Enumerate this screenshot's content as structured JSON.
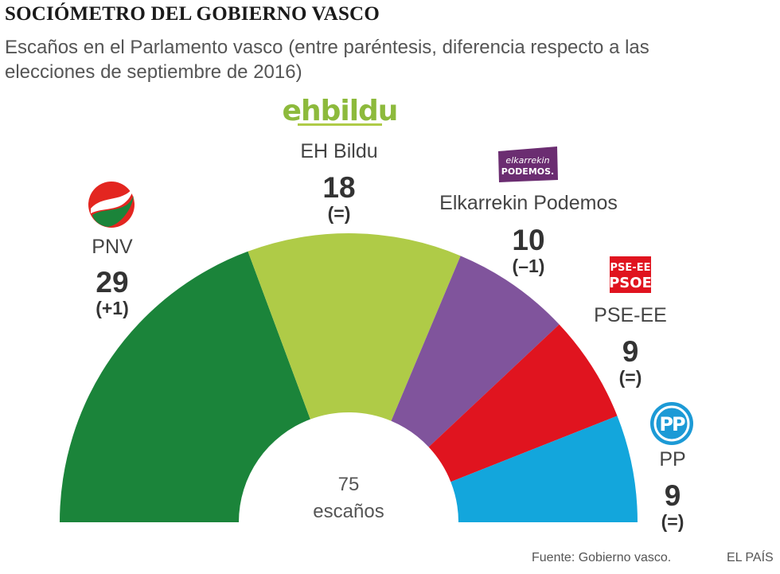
{
  "title": "SOCIÓMETRO DEL GOBIERNO VASCO",
  "subtitle": "Escaños en el Parlamento vasco (entre paréntesis, diferencia respecto a las elecciones de septiembre de 2016)",
  "chart_data": {
    "type": "pie",
    "variant": "half-donut (hemicycle)",
    "title": "SOCIÓMETRO DEL GOBIERNO VASCO",
    "total_seats": 75,
    "center_label": {
      "number": "75",
      "unit": "escaños"
    },
    "series": [
      {
        "name": "PNV",
        "value": 29,
        "change": "(+1)",
        "color": "#1b843a",
        "logo": "pnv-logo"
      },
      {
        "name": "EH Bildu",
        "value": 18,
        "change": "(=)",
        "color": "#afcb47",
        "logo": "ehbildu-logo"
      },
      {
        "name": "Elkarrekin Podemos",
        "value": 10,
        "change": "(–1)",
        "color": "#80549c",
        "logo": "podemos-logo"
      },
      {
        "name": "PSE-EE",
        "value": 9,
        "change": "(=)",
        "color": "#e0141f",
        "logo": "psoe-logo"
      },
      {
        "name": "PP",
        "value": 9,
        "change": "(=)",
        "color": "#13a6dc",
        "logo": "pp-logo"
      }
    ],
    "logo_text": {
      "ehbildu": "ehbildu",
      "podemos_line1": "elkarrekin",
      "podemos_line2": "PODEMOS.",
      "psoe_line1": "PSE-EE",
      "psoe_line2": "PSOE",
      "pp": "PP"
    }
  },
  "footer": {
    "source": "Fuente: Gobierno vasco.",
    "credit": "EL PAÍS"
  }
}
